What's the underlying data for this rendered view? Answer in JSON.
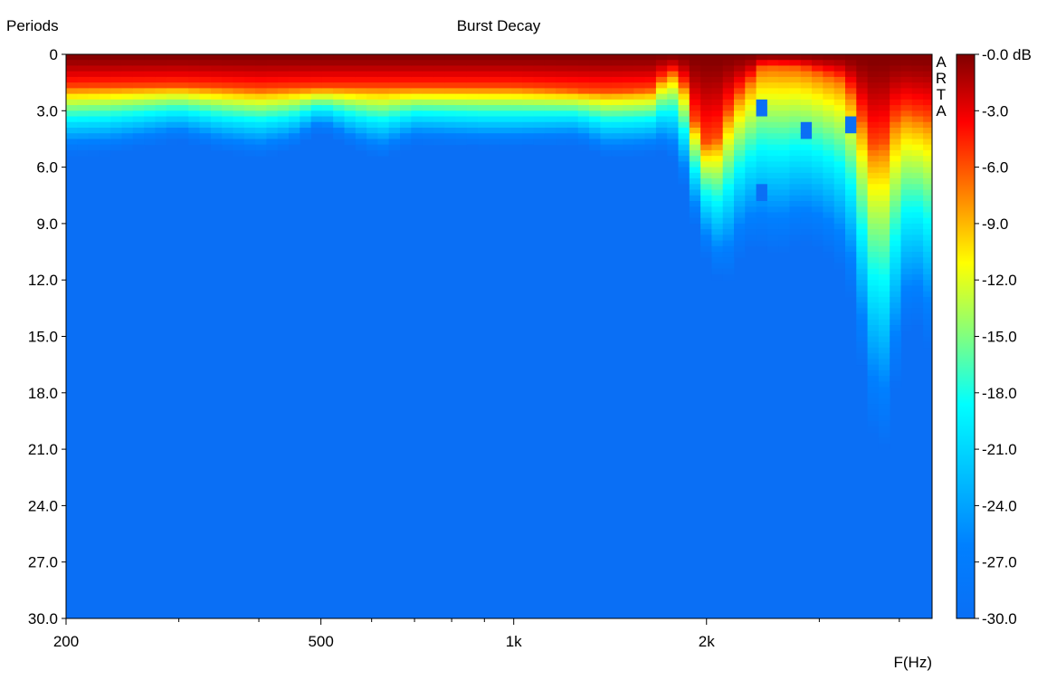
{
  "chart_data": {
    "type": "heatmap",
    "title": "Burst Decay",
    "xlabel": "F(Hz)",
    "ylabel": "Periods",
    "watermark": "ARTA",
    "x_scale": "log",
    "xlim": [
      200,
      4500
    ],
    "x_ticks": [
      200,
      500,
      1000,
      2000
    ],
    "x_tick_labels": [
      "200",
      "500",
      "1k",
      "2k"
    ],
    "ylim": [
      0,
      30
    ],
    "y_ticks": [
      0,
      3,
      6,
      9,
      12,
      15,
      18,
      21,
      24,
      27,
      30
    ],
    "y_tick_labels": [
      "0",
      "3.0",
      "6.0",
      "9.0",
      "12.0",
      "15.0",
      "18.0",
      "21.0",
      "24.0",
      "27.0",
      "30.0"
    ],
    "colorbar": {
      "range": [
        -30,
        0
      ],
      "unit": "dB",
      "ticks": [
        0,
        -3,
        -6,
        -9,
        -12,
        -15,
        -18,
        -21,
        -24,
        -27,
        -30
      ],
      "tick_labels": [
        "-0.0 dB",
        "-3.0",
        "-6.0",
        "-9.0",
        "-12.0",
        "-15.0",
        "-18.0",
        "-21.0",
        "-24.0",
        "-27.0",
        "-30.0"
      ],
      "colormap": "jet"
    },
    "floor_color": "#0a6ff5",
    "decay_edge": {
      "description": "periods at which level reaches -30 dB floor, per frequency",
      "freq_hz": [
        200,
        230,
        260,
        300,
        350,
        400,
        450,
        500,
        560,
        620,
        700,
        800,
        900,
        1000,
        1120,
        1250,
        1400,
        1600,
        1750,
        1850,
        1950,
        2050,
        2150,
        2300,
        2450,
        2600,
        2800,
        3000,
        3200,
        3400,
        3600,
        3800,
        4000,
        4200,
        4400,
        4500
      ],
      "periods": [
        5.4,
        5.3,
        5.0,
        4.6,
        5.2,
        5.5,
        5.1,
        4.1,
        5.0,
        5.6,
        4.8,
        4.9,
        5.0,
        5.0,
        4.9,
        4.8,
        5.5,
        5.4,
        5.2,
        7.2,
        10.0,
        11.8,
        12.1,
        10.4,
        10.4,
        10.8,
        10.0,
        10.4,
        11.2,
        13.4,
        20.0,
        21.0,
        16.5,
        13.3,
        16.8,
        12.5
      ]
    },
    "hot_depth": {
      "description": "periods over which level stays above about -6 dB, per frequency",
      "freq_hz": [
        200,
        300,
        400,
        500,
        700,
        1000,
        1400,
        1650,
        1750,
        1850,
        1950,
        2050,
        2200,
        2450,
        2800,
        3300,
        3700,
        4000,
        4500
      ],
      "periods": [
        1.8,
        1.7,
        1.9,
        1.8,
        1.8,
        1.8,
        2.0,
        1.9,
        0.8,
        1.7,
        4.5,
        5.0,
        2.5,
        0.6,
        0.7,
        1.4,
        5.5,
        3.0,
        3.5
      ]
    },
    "notches": [
      {
        "freq_hz": 2450,
        "periods": 2.9
      },
      {
        "freq_hz": 2450,
        "periods": 7.3
      },
      {
        "freq_hz": 2850,
        "periods": 4.0
      },
      {
        "freq_hz": 3350,
        "periods": 3.8
      }
    ]
  }
}
